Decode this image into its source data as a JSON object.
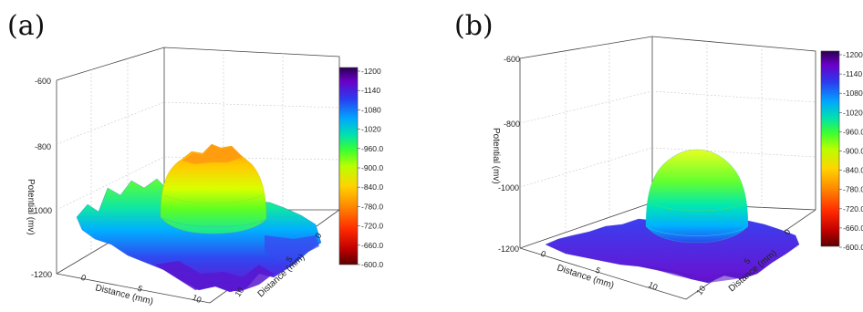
{
  "chart_data": [
    {
      "panel_label": "(a)",
      "type": "surface3d",
      "zlabel": "Potential (mv)",
      "xlabel": "Distance (mm)",
      "ylabel": "Distance (mm)",
      "z_ticks": [
        "-600",
        "-800",
        "-1000",
        "-1200"
      ],
      "zlim": [
        -1200,
        -600
      ],
      "x_ticks": [
        "0",
        "5",
        "10"
      ],
      "y_ticks": [
        "0",
        "5",
        "10"
      ],
      "colorbar": {
        "labels": [
          "-1200",
          "-1140",
          "-1080",
          "-1020",
          "-960.0",
          "-900.0",
          "-840.0",
          "-780.0",
          "-720.0",
          "-660.0",
          "-600.0"
        ],
        "colors": [
          "#3a006f",
          "#6a00c8",
          "#2c3cf0",
          "#00a8ff",
          "#00e6a0",
          "#40ff20",
          "#b8ff00",
          "#ffe600",
          "#ffa000",
          "#ff4a00",
          "#e00000",
          "#8b0000"
        ]
      },
      "surface": {
        "baseline": -1030,
        "dome_peak": -810,
        "dome_color_top": "#ffa020",
        "edge_color": "#3a4cf0"
      }
    },
    {
      "panel_label": "(b)",
      "type": "surface3d",
      "zlabel": "Potential (mv)",
      "xlabel": "Distance (mm)",
      "ylabel": "Distance (mm)",
      "z_ticks": [
        "-600",
        "-800",
        "-1000",
        "-1200"
      ],
      "zlim": [
        -1200,
        -600
      ],
      "x_ticks": [
        "0",
        "5",
        "10"
      ],
      "y_ticks": [
        "0",
        "5",
        "10"
      ],
      "colorbar": {
        "labels": [
          "-1200",
          "-1140",
          "-1080",
          "-1020",
          "-960.0",
          "-900.0",
          "-840.0",
          "-780.0",
          "-720.0",
          "-660.0",
          "-600.0"
        ],
        "colors": [
          "#3a006f",
          "#6a00c8",
          "#2c3cf0",
          "#00a8ff",
          "#00e6a0",
          "#40ff20",
          "#b8ff00",
          "#ffe600",
          "#ffa000",
          "#ff4a00",
          "#e00000",
          "#8b0000"
        ]
      },
      "surface": {
        "baseline": -1120,
        "dome_peak": -880,
        "dome_color_top": "#d8ff20",
        "edge_color": "#4a30e0"
      }
    }
  ]
}
